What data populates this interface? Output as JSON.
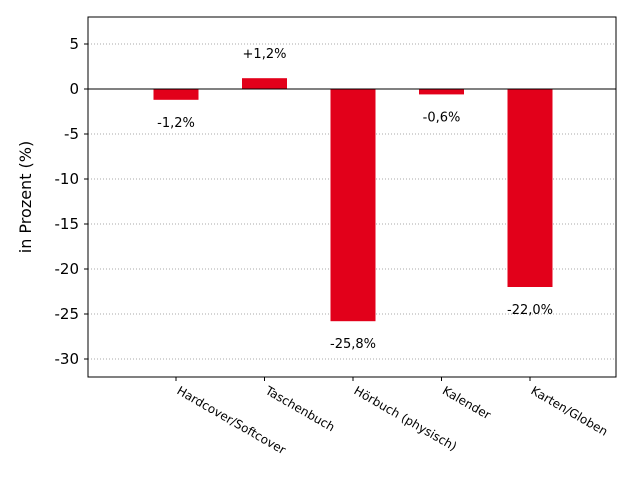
{
  "chart_data": {
    "type": "bar",
    "title": "",
    "xlabel": "",
    "ylabel": "in Prozent (%)",
    "categories": [
      "Hardcover/Softcover",
      "Taschenbuch",
      "Hörbuch (physisch)",
      "Kalender",
      "Karten/Globen"
    ],
    "values": [
      -1.2,
      1.2,
      -25.8,
      -0.6,
      -22.0
    ],
    "data_labels": [
      "-1,2%",
      "+1,2%",
      "-25,8%",
      "-0,6%",
      "-22,0%"
    ],
    "ylim": [
      -32,
      8
    ],
    "yticks": [
      5,
      0,
      -5,
      -10,
      -15,
      -20,
      -25,
      -30
    ],
    "ytick_labels": [
      "5",
      "0",
      "-5",
      "-10",
      "-15",
      "-20",
      "-25",
      "-30"
    ],
    "grid": "horizontal dotted",
    "legend": "none",
    "bar_color": "#e2001a"
  }
}
